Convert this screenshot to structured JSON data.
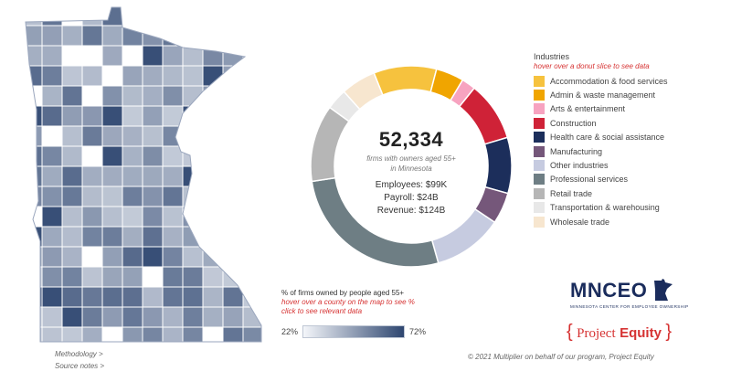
{
  "summary": {
    "total_firms": "52,334",
    "caption_line1": "firms with owners aged 55+",
    "caption_line2": "in Minnesota",
    "employees": "Employees: $99K",
    "payroll": "Payroll: $24B",
    "revenue": "Revenue: $124B"
  },
  "legend": {
    "title": "Industries",
    "hint": "hover over a donut slice to see data",
    "items": [
      {
        "label": "Accommodation & food services",
        "color": "#f6c23e",
        "value": 9
      },
      {
        "label": "Admin & waste management",
        "color": "#f0a500",
        "value": 4
      },
      {
        "label": "Arts & entertainment",
        "color": "#f7a3c0",
        "value": 2
      },
      {
        "label": "Construction",
        "color": "#cf2237",
        "value": 8.5
      },
      {
        "label": "Health care & social assistance",
        "color": "#1c2e5b",
        "value": 8
      },
      {
        "label": "Manufacturing",
        "color": "#75577a",
        "value": 4.5
      },
      {
        "label": "Other industries",
        "color": "#c6cbe0",
        "value": 10
      },
      {
        "label": "Professional services",
        "color": "#6e7e84",
        "value": 24
      },
      {
        "label": "Retail trade",
        "color": "#b6b6b6",
        "value": 11
      },
      {
        "label": "Transportation & warehousing",
        "color": "#e8e8e8",
        "value": 3
      },
      {
        "label": "Wholesale trade",
        "color": "#f7e6cf",
        "value": 5
      }
    ]
  },
  "map_scale": {
    "title": "% of firms owned by people aged 55+",
    "hint1": "hover over a county on the map to see %",
    "hint2": "click to see relevant data",
    "min_label": "22%",
    "max_label": "72%",
    "min_color": "#f4f6fa",
    "max_color": "#2e4670"
  },
  "links": {
    "methodology": "Methodology >",
    "source_notes": "Source notes >"
  },
  "branding": {
    "mnceo": "MNCEO",
    "mnceo_sub": "MINNESOTA CENTER FOR EMPLOYEE OWNERSHIP",
    "pe_part1": "Project",
    "pe_part2": "Equity",
    "brace_open": "{",
    "brace_close": "}",
    "copyright": "© 2021 Multiplier on behalf of our program, Project Equity"
  }
}
